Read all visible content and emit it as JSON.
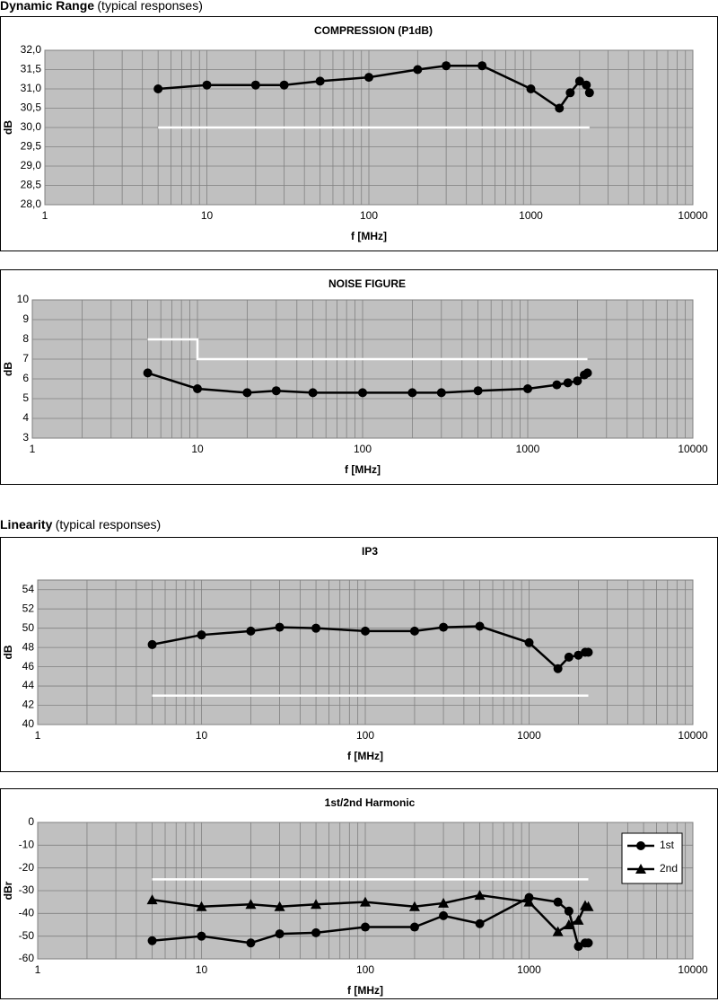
{
  "sections": [
    {
      "heading": "Dynamic Range",
      "note": "(typical responses)"
    },
    {
      "heading": "Linearity",
      "note": "(typical responses)"
    }
  ],
  "chart_data": [
    {
      "type": "line",
      "title": "COMPRESSION (P1dB)",
      "xlabel": "f [MHz]",
      "ylabel": "dB",
      "xscale": "log",
      "grid": true,
      "xlim": [
        1,
        10000
      ],
      "xticks": [
        1,
        10,
        100,
        1000,
        10000
      ],
      "ylim": [
        28,
        32
      ],
      "yticks": [
        {
          "value": 28,
          "label": "28,0"
        },
        {
          "value": 28.5,
          "label": "28,5"
        },
        {
          "value": 29,
          "label": "29,0"
        },
        {
          "value": 29.5,
          "label": "29,5"
        },
        {
          "value": 30,
          "label": "30,0"
        },
        {
          "value": 30.5,
          "label": "30,5"
        },
        {
          "value": 31,
          "label": "31,0"
        },
        {
          "value": 31.5,
          "label": "31,5"
        },
        {
          "value": 32,
          "label": "32,0"
        }
      ],
      "x": [
        5,
        10,
        20,
        30,
        50,
        100,
        200,
        300,
        500,
        1000,
        1500,
        1750,
        2000,
        2200,
        2300
      ],
      "series": [
        {
          "color": "#000000",
          "marker": "circle",
          "values": [
            31.0,
            31.1,
            31.1,
            31.1,
            31.2,
            31.3,
            31.5,
            31.6,
            31.6,
            31.0,
            30.5,
            30.9,
            31.2,
            31.1,
            30.9
          ]
        },
        {
          "color": "#ffffff",
          "x": [
            5,
            2300
          ],
          "values": [
            30,
            30
          ]
        }
      ]
    },
    {
      "type": "line",
      "title": "NOISE FIGURE",
      "xlabel": "f [MHz]",
      "ylabel": "dB",
      "xscale": "log",
      "grid": true,
      "xlim": [
        1,
        10000
      ],
      "xticks": [
        1,
        10,
        100,
        1000,
        10000
      ],
      "ylim": [
        3,
        10
      ],
      "yticks": [
        3,
        4,
        5,
        6,
        7,
        8,
        9,
        10
      ],
      "x": [
        5,
        10,
        20,
        30,
        50,
        100,
        200,
        300,
        500,
        1000,
        1500,
        1750,
        2000,
        2200,
        2300
      ],
      "series": [
        {
          "color": "#000000",
          "marker": "circle",
          "values": [
            6.3,
            5.5,
            5.3,
            5.4,
            5.3,
            5.3,
            5.3,
            5.3,
            5.4,
            5.5,
            5.7,
            5.8,
            5.9,
            6.2,
            6.3
          ]
        },
        {
          "color": "#ffffff",
          "x": [
            5,
            10,
            10,
            2300
          ],
          "values": [
            8,
            8,
            7,
            7
          ]
        }
      ]
    },
    {
      "type": "line",
      "title": "IP3",
      "xlabel": "f [MHz]",
      "ylabel": "dB",
      "xscale": "log",
      "grid": true,
      "xlim": [
        1,
        10000
      ],
      "xticks": [
        1,
        10,
        100,
        1000,
        10000
      ],
      "ylim": [
        40,
        55
      ],
      "yticks": [
        40,
        42,
        44,
        46,
        48,
        50,
        52,
        54
      ],
      "x": [
        5,
        10,
        20,
        30,
        50,
        100,
        200,
        300,
        500,
        1000,
        1500,
        1750,
        2000,
        2200,
        2300
      ],
      "series": [
        {
          "color": "#000000",
          "marker": "circle",
          "values": [
            48.3,
            49.3,
            49.7,
            50.1,
            50.0,
            49.7,
            49.7,
            50.1,
            50.2,
            48.5,
            45.8,
            47.0,
            47.2,
            47.5,
            47.5
          ]
        },
        {
          "color": "#ffffff",
          "x": [
            5,
            2300
          ],
          "values": [
            43,
            43
          ]
        }
      ]
    },
    {
      "type": "line",
      "title": "1st/2nd Harmonic",
      "xlabel": "f [MHz]",
      "ylabel": "dBr",
      "xscale": "log",
      "grid": true,
      "legend": "right",
      "xlim": [
        1,
        10000
      ],
      "xticks": [
        1,
        10,
        100,
        1000,
        10000
      ],
      "ylim": [
        -60,
        0
      ],
      "yticks": [
        0,
        -10,
        -20,
        -30,
        -40,
        -50,
        -60
      ],
      "x": [
        5,
        10,
        20,
        30,
        50,
        100,
        200,
        300,
        500,
        1000,
        1500,
        1750,
        2000,
        2200,
        2300
      ],
      "series": [
        {
          "name": "1st",
          "color": "#000000",
          "marker": "circle",
          "values": [
            -52,
            -50,
            -53,
            -49,
            -48.5,
            -46,
            -46,
            -41,
            -44.5,
            -33,
            -35,
            -39,
            -54.5,
            -53,
            -53
          ]
        },
        {
          "name": "2nd",
          "color": "#000000",
          "marker": "triangle",
          "values": [
            -34,
            -37,
            -36,
            -37,
            -36,
            -35,
            -37,
            -35.5,
            -32,
            -35,
            -48,
            -45,
            -43,
            -36.5,
            -37
          ]
        },
        {
          "color": "#ffffff",
          "x": [
            5,
            2300
          ],
          "values": [
            -25,
            -25
          ]
        }
      ]
    }
  ]
}
